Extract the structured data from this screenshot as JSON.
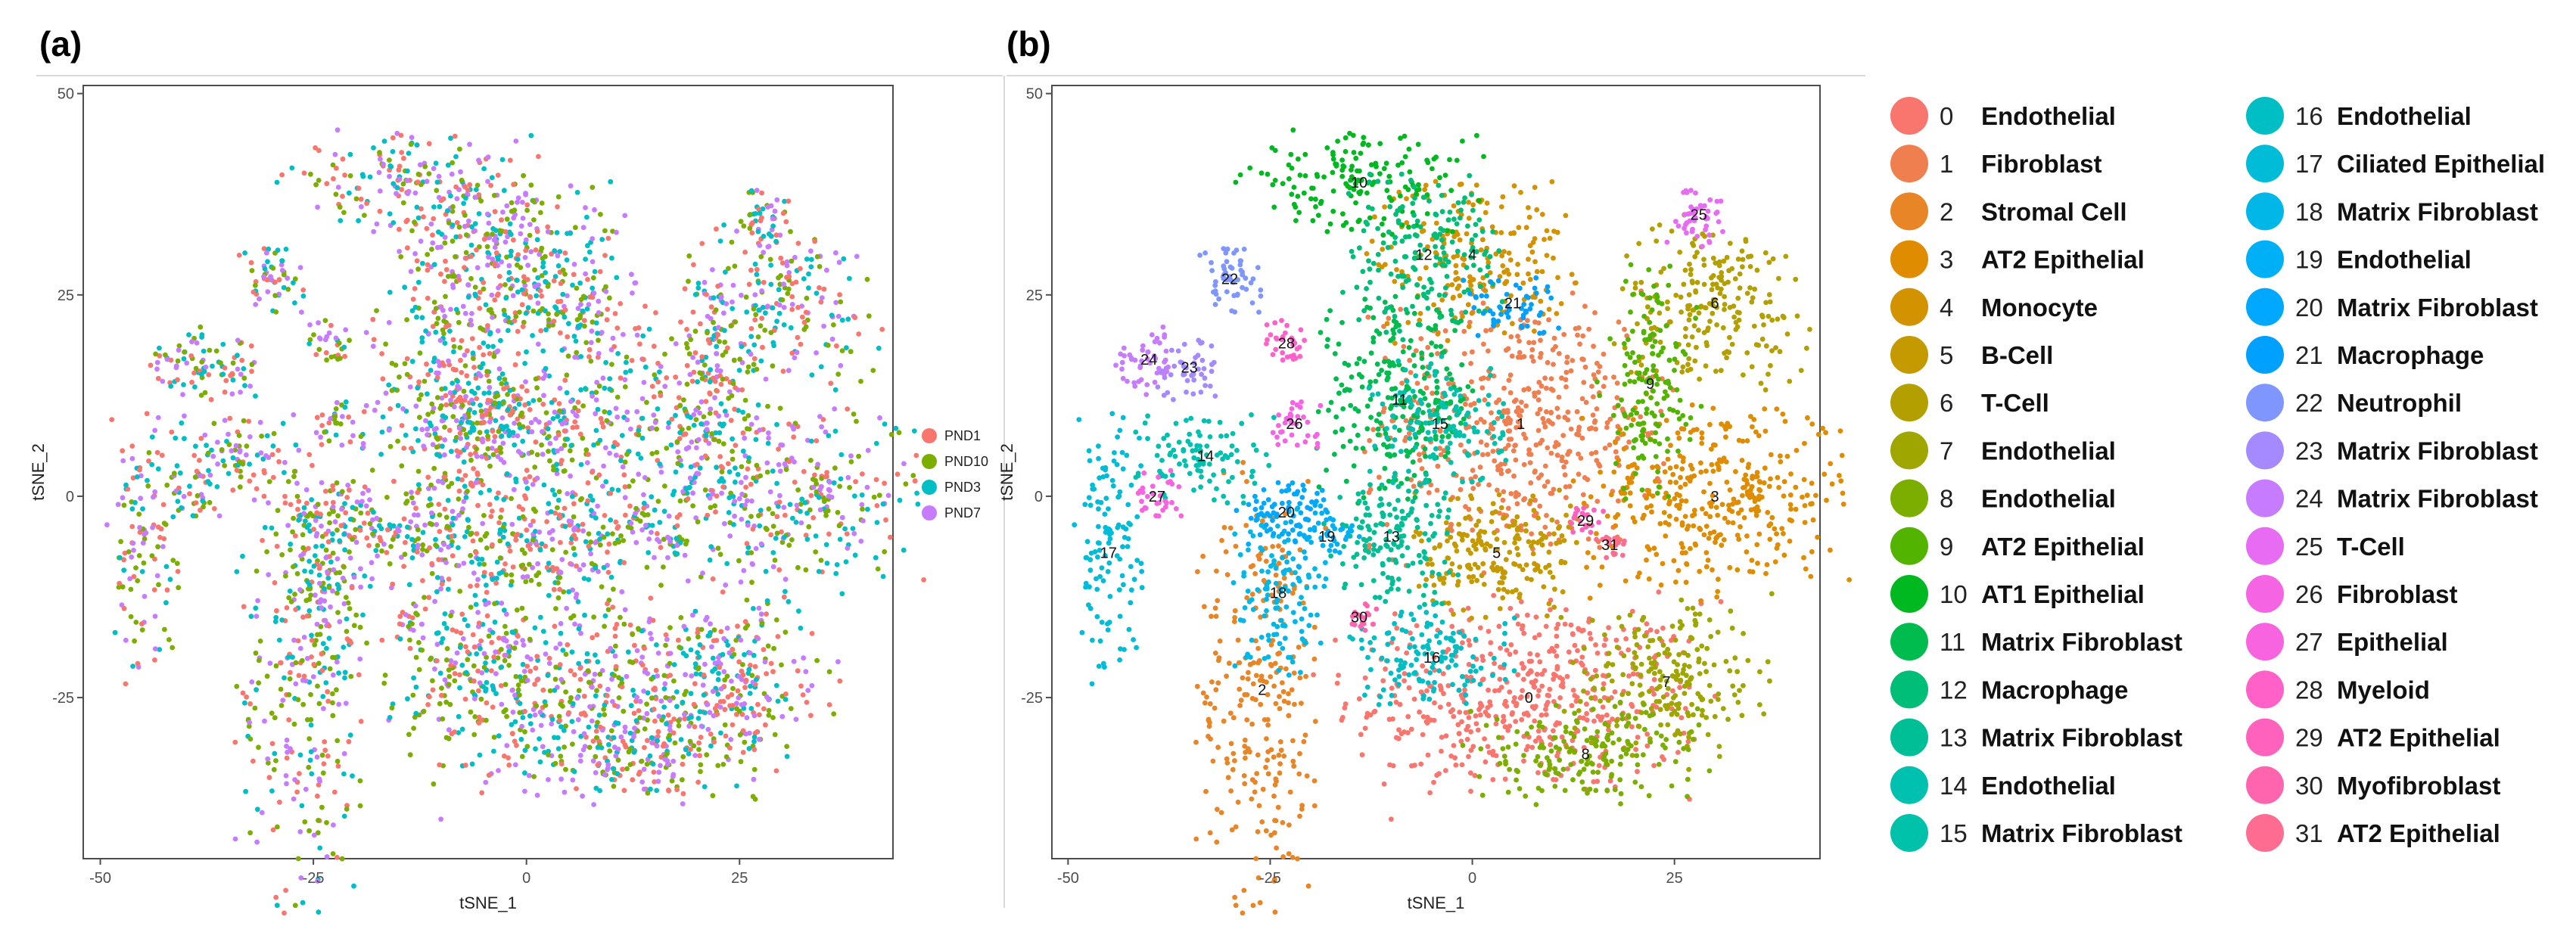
{
  "panels": {
    "a": {
      "letter": "(a)"
    },
    "b": {
      "letter": "(b)"
    }
  },
  "chart_data": [
    {
      "type": "scatter",
      "panel": "(a)",
      "title": "",
      "xlabel": "tSNE_1",
      "ylabel": "tSNE_2",
      "xlim": [
        -52,
        43
      ],
      "ylim": [
        -45,
        51
      ],
      "xticks": [
        -50,
        -25,
        0,
        25
      ],
      "yticks": [
        -25,
        0,
        25,
        50
      ],
      "legend_position": "right",
      "legend": [
        {
          "name": "PND1",
          "color": "#F8766D"
        },
        {
          "name": "PND10",
          "color": "#7CAE00"
        },
        {
          "name": "PND3",
          "color": "#00BFC4"
        },
        {
          "name": "PND7",
          "color": "#C77CFF"
        }
      ]
    },
    {
      "type": "scatter",
      "panel": "(b)",
      "title": "",
      "xlabel": "tSNE_1",
      "ylabel": "tSNE_2",
      "xlim": [
        -52,
        43
      ],
      "ylim": [
        -45,
        51
      ],
      "xticks": [
        -50,
        -25,
        0,
        25
      ],
      "yticks": [
        -25,
        0,
        25,
        50
      ],
      "clusters": [
        {
          "id": "0",
          "name": "Endothelial",
          "color": "#F8766D",
          "center": [
            7,
            -25
          ],
          "spread": [
            11,
            6
          ],
          "count": 500
        },
        {
          "id": "1",
          "name": "Fibroblast",
          "color": "#F07F50",
          "center": [
            6,
            9
          ],
          "spread": [
            9,
            8
          ],
          "count": 480
        },
        {
          "id": "2",
          "name": "Stromal Cell",
          "color": "#E88526",
          "center": [
            -26,
            -24
          ],
          "spread": [
            4,
            13
          ],
          "count": 260
        },
        {
          "id": "3",
          "name": "AT2 Epithelial",
          "color": "#E08C00",
          "center": [
            30,
            0
          ],
          "spread": [
            8,
            6
          ],
          "count": 360
        },
        {
          "id": "4",
          "name": "Monocyte",
          "color": "#D39200",
          "center": [
            0,
            30
          ],
          "spread": [
            6,
            5
          ],
          "count": 200
        },
        {
          "id": "5",
          "name": "B-Cell",
          "color": "#C49A00",
          "center": [
            3,
            -7
          ],
          "spread": [
            5,
            4
          ],
          "count": 200
        },
        {
          "id": "6",
          "name": "T-Cell",
          "color": "#B3A000",
          "center": [
            30,
            24
          ],
          "spread": [
            6,
            5
          ],
          "count": 210
        },
        {
          "id": "7",
          "name": "Endothelial",
          "color": "#9FA600",
          "center": [
            24,
            -23
          ],
          "spread": [
            6,
            5
          ],
          "count": 210
        },
        {
          "id": "8",
          "name": "Endothelial",
          "color": "#7CAE00",
          "center": [
            14,
            -32
          ],
          "spread": [
            7,
            3
          ],
          "count": 170
        },
        {
          "id": "9",
          "name": "AT2 Epithelial",
          "color": "#53B400",
          "center": [
            22,
            14
          ],
          "spread": [
            3,
            7
          ],
          "count": 150
        },
        {
          "id": "10",
          "name": "AT1 Epithelial",
          "color": "#00B81F",
          "center": [
            -14,
            39
          ],
          "spread": [
            7,
            3
          ],
          "count": 160
        },
        {
          "id": "11",
          "name": "Matrix Fibroblast",
          "color": "#00BB4E",
          "center": [
            -9,
            12
          ],
          "spread": [
            5,
            6
          ],
          "count": 240
        },
        {
          "id": "12",
          "name": "Macrophage",
          "color": "#00BD77",
          "center": [
            -6,
            30
          ],
          "spread": [
            5,
            5
          ],
          "count": 170
        },
        {
          "id": "13",
          "name": "Matrix Fibroblast",
          "color": "#00BF96",
          "center": [
            -10,
            -5
          ],
          "spread": [
            4,
            4
          ],
          "count": 150
        },
        {
          "id": "14",
          "name": "Endothelial",
          "color": "#00C0AF",
          "center": [
            -33,
            5
          ],
          "spread": [
            4,
            3
          ],
          "count": 100
        },
        {
          "id": "15",
          "name": "Matrix Fibroblast",
          "color": "#00C1A9",
          "center": [
            -4,
            9
          ],
          "spread": [
            4,
            4
          ],
          "count": 130
        },
        {
          "id": "16",
          "name": "Endothelial",
          "color": "#00BFC4",
          "center": [
            -5,
            -20
          ],
          "spread": [
            5,
            3
          ],
          "count": 130
        },
        {
          "id": "17",
          "name": "Ciliated Epithelial",
          "color": "#00BCD6",
          "center": [
            -45,
            -7
          ],
          "spread": [
            2,
            8
          ],
          "count": 120
        },
        {
          "id": "18",
          "name": "Matrix Fibroblast",
          "color": "#00B7E8",
          "center": [
            -24,
            -12
          ],
          "spread": [
            3,
            5
          ],
          "count": 120
        },
        {
          "id": "19",
          "name": "Endothelial",
          "color": "#00B0F6",
          "center": [
            -18,
            -5
          ],
          "spread": [
            2,
            2
          ],
          "count": 45
        },
        {
          "id": "20",
          "name": "Matrix Fibroblast",
          "color": "#00A8FF",
          "center": [
            -23,
            -2
          ],
          "spread": [
            3,
            2
          ],
          "count": 70
        },
        {
          "id": "21",
          "name": "Macrophage",
          "color": "#00A0FF",
          "center": [
            5,
            24
          ],
          "spread": [
            3,
            2
          ],
          "count": 50
        },
        {
          "id": "22",
          "name": "Neutrophil",
          "color": "#7F96FF",
          "center": [
            -30,
            27
          ],
          "spread": [
            2,
            2
          ],
          "count": 55
        },
        {
          "id": "23",
          "name": "Matrix Fibroblast",
          "color": "#A58AFF",
          "center": [
            -35,
            16
          ],
          "spread": [
            2,
            2
          ],
          "count": 45
        },
        {
          "id": "24",
          "name": "Matrix Fibroblast",
          "color": "#C77CFF",
          "center": [
            -40,
            17
          ],
          "spread": [
            2,
            2
          ],
          "count": 45
        },
        {
          "id": "25",
          "name": "T-Cell",
          "color": "#E76BF3",
          "center": [
            28,
            35
          ],
          "spread": [
            2,
            2
          ],
          "count": 45
        },
        {
          "id": "26",
          "name": "Fibroblast",
          "color": "#F564E3",
          "center": [
            -22,
            9
          ],
          "spread": [
            1.5,
            1.5
          ],
          "count": 35
        },
        {
          "id": "27",
          "name": "Epithelial",
          "color": "#F863DF",
          "center": [
            -39,
            0
          ],
          "spread": [
            1.5,
            1.5
          ],
          "count": 30
        },
        {
          "id": "28",
          "name": "Myeloid",
          "color": "#FF61C9",
          "center": [
            -23,
            19
          ],
          "spread": [
            1.5,
            1.5
          ],
          "count": 30
        },
        {
          "id": "29",
          "name": "AT2 Epithelial",
          "color": "#FF62BC",
          "center": [
            14,
            -3
          ],
          "spread": [
            1,
            1
          ],
          "count": 20
        },
        {
          "id": "30",
          "name": "Myofibroblast",
          "color": "#FF65AE",
          "center": [
            -14,
            -15
          ],
          "spread": [
            1,
            1
          ],
          "count": 18
        },
        {
          "id": "31",
          "name": "AT2 Epithelial",
          "color": "#FF6C91",
          "center": [
            17,
            -6
          ],
          "spread": [
            1,
            1
          ],
          "count": 18
        }
      ]
    }
  ]
}
